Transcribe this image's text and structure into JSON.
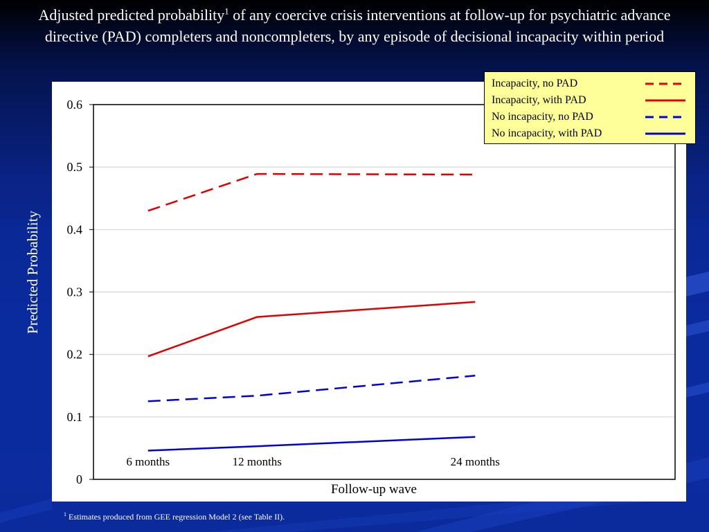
{
  "slide": {
    "title_main": "Adjusted predicted probability",
    "title_sup": "1",
    "title_rest": " of any coercive crisis interventions at follow-up for psychiatric advance directive (PAD) completers and noncompleters, by any episode of decisional incapacity within period",
    "footnote_sup": "1",
    "footnote_text": " Estimates produced from GEE regression Model 2 (see Table II)."
  },
  "chart_data": {
    "type": "line",
    "title": "",
    "xlabel": "Follow-up wave",
    "ylabel": "Predicted Probability",
    "categories": [
      "6 months",
      "12 months",
      "24 months"
    ],
    "x": [
      6,
      12,
      24
    ],
    "xlim": [
      3,
      35
    ],
    "ylim": [
      0,
      0.6
    ],
    "yticks": [
      "0",
      "0.1",
      "0.2",
      "0.3",
      "0.4",
      "0.5",
      "0.6"
    ],
    "grid": true,
    "legend_position": "top-right",
    "series": [
      {
        "name": "Incapacity, no PAD",
        "values": [
          0.43,
          0.489,
          0.488
        ],
        "color": "#e00000",
        "style": "dashed"
      },
      {
        "name": "Incapacity, with PAD",
        "values": [
          0.197,
          0.26,
          0.284
        ],
        "color": "#e00000",
        "style": "solid"
      },
      {
        "name": "No incapacity, no PAD",
        "values": [
          0.125,
          0.134,
          0.166
        ],
        "color": "#0000dd",
        "style": "dashed"
      },
      {
        "name": "No incapacity, with PAD",
        "values": [
          0.046,
          0.053,
          0.068
        ],
        "color": "#0000dd",
        "style": "solid"
      }
    ]
  }
}
